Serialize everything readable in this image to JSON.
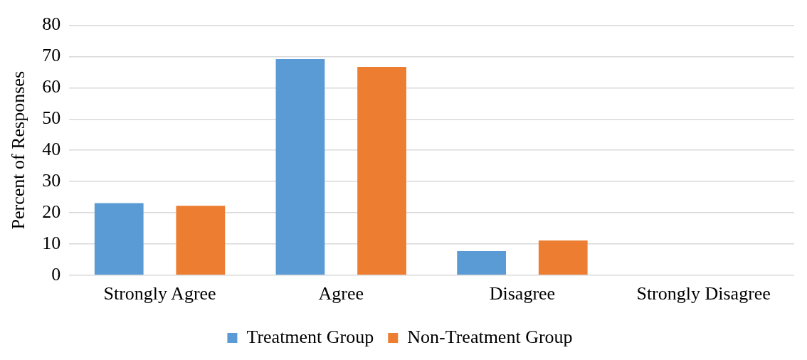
{
  "chart_data": {
    "type": "bar",
    "ylabel": "Percent of Responses",
    "categories": [
      "Strongly Agree",
      "Agree",
      "Disagree",
      "Strongly Disagree"
    ],
    "series": [
      {
        "name": "Treatment Group",
        "color": "#5b9bd5",
        "values": [
          23.1,
          69.2,
          7.7,
          0
        ]
      },
      {
        "name": "Non-Treatment Group",
        "color": "#ed7d31",
        "values": [
          22.2,
          66.7,
          11.1,
          0
        ]
      }
    ],
    "ylim": [
      0,
      80
    ],
    "yticks": [
      0,
      10,
      20,
      30,
      40,
      50,
      60,
      70,
      80
    ],
    "grid": "y",
    "legend": "bottom"
  }
}
